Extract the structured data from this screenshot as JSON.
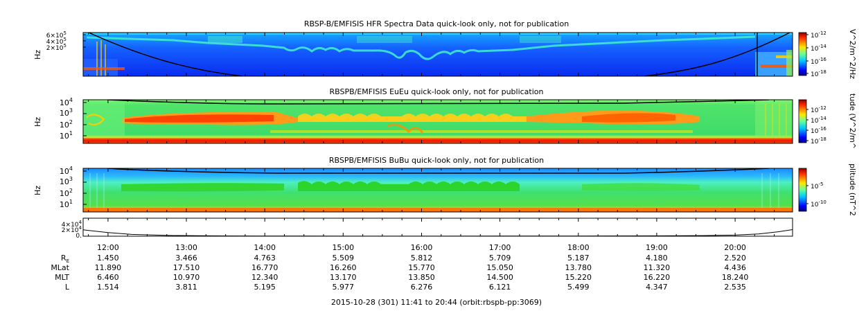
{
  "chart_data": [
    {
      "type": "heatmap",
      "title": "RBSP-B/EMFISIS  HFR Spectra Data quick-look only, not for publication",
      "ylabel": "Hz",
      "yscale": "log",
      "ylim": [
        10000,
        600000
      ],
      "ytick_labels": [
        {
          "base": "6×10",
          "exp": "5"
        },
        {
          "base": "4×10",
          "exp": "5"
        },
        {
          "base": "2×10",
          "exp": "5"
        }
      ],
      "colorbar_label": "V^2/m^2/Hz",
      "colorbar_ticks": [
        {
          "base": "10",
          "exp": "-12"
        },
        {
          "base": "10",
          "exp": "-14"
        },
        {
          "base": "10",
          "exp": "-16"
        },
        {
          "base": "10",
          "exp": "-18"
        }
      ]
    },
    {
      "type": "heatmap",
      "title": "RBSPB/EMFISIS  EuEu quick-look only, not for publication",
      "ylabel": "Hz",
      "yscale": "log",
      "ylim": [
        3,
        12000
      ],
      "ytick_labels": [
        {
          "base": "10",
          "exp": "4"
        },
        {
          "base": "10",
          "exp": "3"
        },
        {
          "base": "10",
          "exp": "2"
        },
        {
          "base": "10",
          "exp": "1"
        }
      ],
      "colorbar_label": "tude (V^2/m^",
      "colorbar_ticks": [
        {
          "base": "10",
          "exp": "-12"
        },
        {
          "base": "10",
          "exp": "-14"
        },
        {
          "base": "10",
          "exp": "-16"
        },
        {
          "base": "10",
          "exp": "-18"
        }
      ]
    },
    {
      "type": "heatmap",
      "title": "RBSPB/EMFISIS  BuBu quick-look only, not for publication",
      "ylabel": "Hz",
      "yscale": "log",
      "ylim": [
        3,
        12000
      ],
      "ytick_labels": [
        {
          "base": "10",
          "exp": "4"
        },
        {
          "base": "10",
          "exp": "3"
        },
        {
          "base": "10",
          "exp": "2"
        },
        {
          "base": "10",
          "exp": "1"
        }
      ],
      "colorbar_label": "plitude (nT^2",
      "colorbar_ticks": [
        {
          "base": "10",
          "exp": "-5"
        },
        {
          "base": "10",
          "exp": "-10"
        }
      ]
    },
    {
      "type": "line",
      "ylim": [
        0,
        45000
      ],
      "ytick_labels": [
        {
          "base": "4×10",
          "exp": "4"
        },
        {
          "base": "2×10",
          "exp": "4"
        },
        {
          "base": "0.",
          "exp": ""
        }
      ],
      "x_hours": [
        11.683,
        12.0,
        12.3,
        12.8,
        13.5,
        14.5,
        15.5,
        16.2,
        17.0,
        18.0,
        19.0,
        19.6,
        20.0,
        20.3,
        20.55,
        20.733
      ],
      "values": [
        16000,
        9000,
        4500,
        1800,
        700,
        350,
        250,
        230,
        260,
        380,
        800,
        1600,
        2800,
        5500,
        11000,
        16500
      ]
    }
  ],
  "x_axis": {
    "range_hours": [
      11.683,
      20.733
    ],
    "ticks": [
      {
        "hour": 12,
        "label": "12:00"
      },
      {
        "hour": 13,
        "label": "13:00"
      },
      {
        "hour": 14,
        "label": "14:00"
      },
      {
        "hour": 15,
        "label": "15:00"
      },
      {
        "hour": 16,
        "label": "16:00"
      },
      {
        "hour": 17,
        "label": "17:00"
      },
      {
        "hour": 18,
        "label": "18:00"
      },
      {
        "hour": 19,
        "label": "19:00"
      },
      {
        "hour": 20,
        "label": "20:00"
      }
    ]
  },
  "ephemeris": [
    {
      "label": "R",
      "sub": "E",
      "values": [
        "1.450",
        "3.466",
        "4.763",
        "5.509",
        "5.812",
        "5.709",
        "5.187",
        "4.180",
        "2.520"
      ]
    },
    {
      "label": "MLat",
      "sub": "",
      "values": [
        "11.890",
        "17.510",
        "16.770",
        "16.260",
        "15.770",
        "15.050",
        "13.780",
        "11.320",
        "4.436"
      ]
    },
    {
      "label": "MLT",
      "sub": "",
      "values": [
        "6.460",
        "10.970",
        "12.340",
        "13.170",
        "13.850",
        "14.500",
        "15.220",
        "16.220",
        "18.240"
      ]
    },
    {
      "label": "L",
      "sub": "",
      "values": [
        "1.514",
        "3.811",
        "5.195",
        "5.977",
        "6.276",
        "6.121",
        "5.499",
        "4.347",
        "2.535"
      ]
    }
  ],
  "footer": "2015-10-28 (301) 11:41 to 20:44 (orbit:rbspb-pp:3069)"
}
